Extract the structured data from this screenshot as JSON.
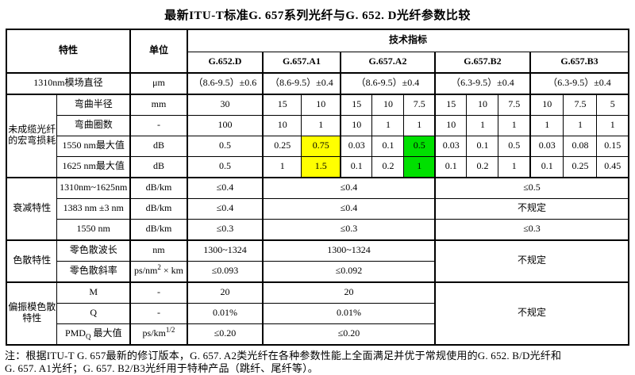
{
  "title": "最新ITU-T标准G. 657系列光纤与G. 652. D光纤参数比较",
  "header": {
    "characteristic": "特性",
    "unit": "单位",
    "tech_index": "技术指标",
    "fibers": [
      "G.652.D",
      "G.657.A1",
      "G.657.A2",
      "G.657.B2",
      "G.657.B3"
    ]
  },
  "highlight": {
    "yellow": "#ffff00",
    "green": "#00e000"
  },
  "rows": {
    "mfd": {
      "label": "1310nm模场直径",
      "unit": "μm",
      "values": [
        "（8.6-9.5）±0.6",
        "（8.6-9.5）±0.4",
        "（8.6-9.5）±0.4",
        "（6.3-9.5）±0.4",
        "（6.3-9.5）±0.4"
      ]
    },
    "macrobend_group": "未成缆光纤的宏弯损耗",
    "bend_radius": {
      "label": "弯曲半径",
      "unit": "mm",
      "values": [
        "30",
        "15",
        "10",
        "15",
        "10",
        "7.5",
        "15",
        "10",
        "7.5",
        "10",
        "7.5",
        "5"
      ]
    },
    "bend_turns": {
      "label": "弯曲圈数",
      "unit": "-",
      "values": [
        "100",
        "10",
        "1",
        "10",
        "1",
        "1",
        "10",
        "1",
        "1",
        "1",
        "1",
        "1"
      ]
    },
    "max_1550": {
      "label": "1550 nm最大值",
      "unit": "dB",
      "values": [
        "0.5",
        "0.25",
        "0.75",
        "0.03",
        "0.1",
        "0.5",
        "0.03",
        "0.1",
        "0.5",
        "0.03",
        "0.08",
        "0.15"
      ]
    },
    "max_1625": {
      "label": "1625 nm最大值",
      "unit": "dB",
      "values": [
        "0.5",
        "1",
        "1.5",
        "0.1",
        "0.2",
        "1",
        "0.1",
        "0.2",
        "1",
        "0.1",
        "0.25",
        "0.45"
      ]
    },
    "atten_group": "衰减特性",
    "atten_1310_1625": {
      "label": "1310nm~1625nm",
      "unit": "dB/km",
      "g652d": "≤0.4",
      "a": "≤0.4",
      "b": "≤0.5"
    },
    "atten_1383": {
      "label": "1383 nm ±3 nm",
      "unit": "dB/km",
      "g652d": "≤0.4",
      "a": "≤0.4",
      "b": "不规定"
    },
    "atten_1550": {
      "label": "1550 nm",
      "unit": "dB/km",
      "g652d": "≤0.3",
      "a": "≤0.3",
      "b": "≤0.3"
    },
    "disp_group": "色散特性",
    "zero_disp_wl": {
      "label": "零色散波长",
      "unit": "nm",
      "g652d": "1300~1324",
      "a": "1300~1324",
      "b": "不规定"
    },
    "zero_disp_slope": {
      "label": "零色散斜率",
      "unit_html": "ps/nm<sup>2</sup> × km",
      "g652d": "≤0.093",
      "a": "≤0.092"
    },
    "pmd_group": "偏振模色散特性",
    "m_row": {
      "label": "M",
      "unit": "-",
      "g652d": "20",
      "a": "20",
      "b": "不规定"
    },
    "q_row": {
      "label": "Q",
      "unit": "-",
      "g652d": "0.01%",
      "a": "0.01%"
    },
    "pmdq": {
      "label_html": "PMD<sub>Q</sub> 最大值",
      "unit_html": "ps/km<sup>1/2</sup>",
      "g652d": "≤0.20",
      "a": "≤0.20"
    }
  },
  "note": {
    "line1": "注：根据ITU-T G. 657最新的修订版本，G. 657. A2类光纤在各种参数性能上全面满足并优于常规使用的G. 652. B/D光纤和",
    "line2": "G. 657. A1光纤；G. 657. B2/B3光纤用于特种产品（跳纤、尾纤等）。"
  }
}
